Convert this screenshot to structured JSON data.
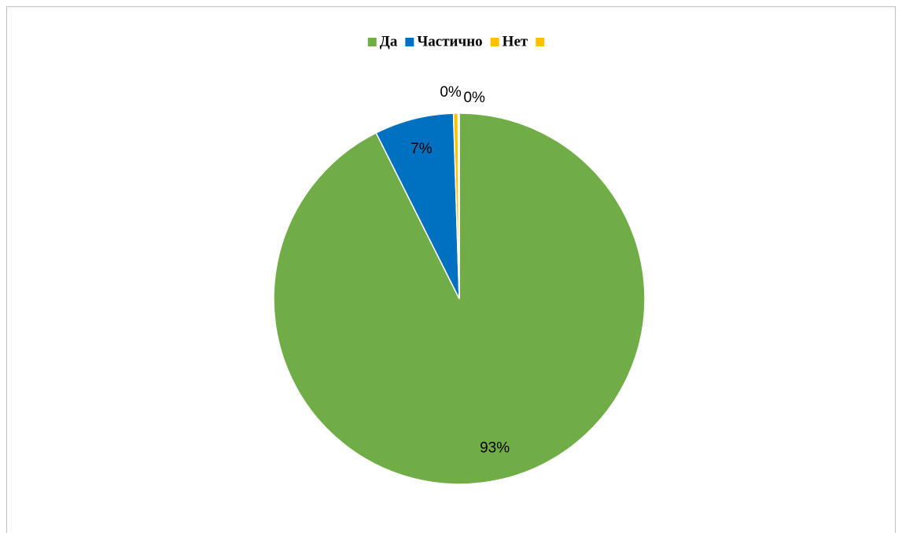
{
  "chart_data": {
    "type": "pie",
    "categories": [
      "Да",
      "Частично",
      "Нет",
      null
    ],
    "values": [
      92.6,
      6.9,
      0.4,
      0.1
    ],
    "value_labels": [
      "93%",
      "7%",
      "0%",
      "0%"
    ],
    "colors": [
      "#70ad47",
      "#0070c0",
      "#ffc000",
      "#ffc000"
    ],
    "legend": "top"
  }
}
